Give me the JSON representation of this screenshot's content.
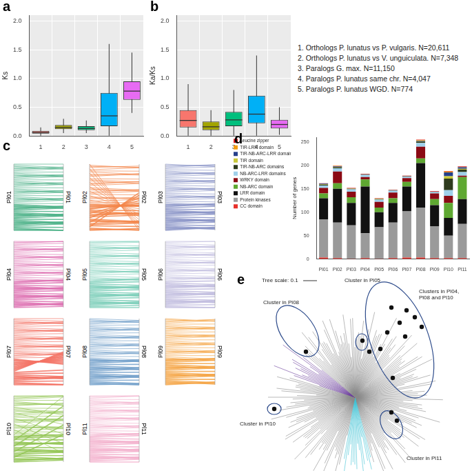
{
  "chart_data": [
    {
      "panel_label": "a",
      "type": "boxplot",
      "ylabel": "Ks",
      "categories": [
        "1",
        "2",
        "3",
        "4",
        "5"
      ],
      "colors": [
        "#f8766d",
        "#a3a500",
        "#00bf7d",
        "#00b0f6",
        "#e76bf3"
      ],
      "boxes": [
        {
          "whislo": 0.0,
          "q1": 0.04,
          "med": 0.06,
          "q3": 0.09,
          "whishi": 0.15
        },
        {
          "whislo": 0.05,
          "q1": 0.12,
          "med": 0.15,
          "q3": 0.19,
          "whishi": 0.3
        },
        {
          "whislo": 0.05,
          "q1": 0.1,
          "med": 0.13,
          "q3": 0.17,
          "whishi": 0.27
        },
        {
          "whislo": 0.0,
          "q1": 0.17,
          "med": 0.35,
          "q3": 0.75,
          "whishi": 1.6
        },
        {
          "whislo": 0.4,
          "q1": 0.63,
          "med": 0.78,
          "q3": 0.95,
          "whishi": 1.45
        }
      ],
      "ylim": [
        0,
        2.1
      ],
      "yticks": [
        {
          "value": 0,
          "label": "0.0"
        },
        {
          "value": 0.5,
          "label": "0.5"
        },
        {
          "value": 1,
          "label": "1.0"
        },
        {
          "value": 1.5,
          "label": "1.5"
        },
        {
          "value": 2,
          "label": "2.0"
        }
      ],
      "grid": true
    },
    {
      "panel_label": "b",
      "type": "boxplot",
      "ylabel": "Ka/Ks",
      "categories": [
        "1",
        "2",
        "3",
        "4",
        "5"
      ],
      "colors": [
        "#f8766d",
        "#a3a500",
        "#00bf7d",
        "#00b0f6",
        "#e76bf3"
      ],
      "boxes": [
        {
          "whislo": 0.0,
          "q1": 0.15,
          "med": 0.27,
          "q3": 0.45,
          "whishi": 0.9
        },
        {
          "whislo": 0.0,
          "q1": 0.1,
          "med": 0.16,
          "q3": 0.25,
          "whishi": 0.45
        },
        {
          "whislo": 0.0,
          "q1": 0.17,
          "med": 0.28,
          "q3": 0.42,
          "whishi": 0.8
        },
        {
          "whislo": 0.0,
          "q1": 0.22,
          "med": 0.38,
          "q3": 0.7,
          "whishi": 1.4
        },
        {
          "whislo": 0.02,
          "q1": 0.13,
          "med": 0.2,
          "q3": 0.28,
          "whishi": 0.5
        }
      ],
      "ylim": [
        0,
        2.1
      ],
      "yticks": [
        {
          "value": 0,
          "label": "0.0"
        },
        {
          "value": 0.5,
          "label": "0.5"
        },
        {
          "value": 1,
          "label": "1.0"
        },
        {
          "value": 1.5,
          "label": "1.5"
        },
        {
          "value": 2,
          "label": "2.0"
        }
      ],
      "grid": true
    },
    {
      "panel_label": "d",
      "type": "bar",
      "stacked": true,
      "legend": "left",
      "grid": false,
      "ylabel": "Number of genes",
      "categories": [
        "Pl01",
        "Pl02",
        "Pl03",
        "Pl04",
        "Pl05",
        "Pl06",
        "Pl07",
        "Pl08",
        "Pl09",
        "Pl10",
        "Pl11"
      ],
      "ylim": [
        0,
        260
      ],
      "yticks": [
        0,
        50,
        100,
        150,
        200,
        250
      ],
      "series": [
        {
          "name": "CC domain",
          "color": "#e8312b",
          "values": [
            3,
            2,
            1,
            2,
            1,
            2,
            3,
            3,
            2,
            2,
            2
          ]
        },
        {
          "name": "Protein kinases",
          "color": "#9a9a9a",
          "values": [
            82,
            76,
            71,
            53,
            67,
            76,
            99,
            107,
            68,
            48,
            73
          ]
        },
        {
          "name": "LRR domain",
          "color": "#111111",
          "values": [
            45,
            72,
            48,
            100,
            32,
            42,
            53,
            95,
            45,
            38,
            53
          ]
        },
        {
          "name": "NB-ARC domain",
          "color": "#5fa832",
          "values": [
            10,
            12,
            12,
            15,
            10,
            10,
            10,
            10,
            13,
            32,
            47
          ]
        },
        {
          "name": "WRKY domain",
          "color": "#8b0a14",
          "values": [
            12,
            25,
            12,
            5,
            12,
            12,
            8,
            25,
            12,
            15,
            3
          ]
        },
        {
          "name": "NB-ARC-LRR domains",
          "color": "#9fd0ea",
          "values": [
            5,
            7,
            5,
            5,
            5,
            4,
            3,
            8,
            3,
            12,
            8
          ]
        },
        {
          "name": "TIR-NB-ARC domains",
          "color": "#2e3b1e",
          "values": [
            2,
            2,
            1,
            1,
            1,
            1,
            1,
            3,
            1,
            25,
            5
          ]
        },
        {
          "name": "TIR domain",
          "color": "#c8c83a",
          "values": [
            1,
            1,
            1,
            0,
            1,
            0,
            0,
            1,
            0,
            5,
            2
          ]
        },
        {
          "name": "TIR-NB-ARC-LRR domains",
          "color": "#26408b",
          "values": [
            1,
            1,
            0,
            0,
            0,
            0,
            0,
            1,
            0,
            8,
            3
          ]
        },
        {
          "name": "TIR-LRR domain",
          "color": "#f39c12",
          "values": [
            0,
            1,
            0,
            0,
            0,
            0,
            0,
            1,
            0,
            2,
            1
          ]
        },
        {
          "name": "Leucine zipper",
          "color": "#d7191c",
          "values": [
            1,
            1,
            1,
            1,
            1,
            1,
            1,
            1,
            1,
            1,
            1
          ]
        }
      ]
    }
  ],
  "category_key": [
    "1. Orthologs P. lunatus vs P. vulgaris. N=20,611",
    "2. Orthologs P. lunatus vs V. unguiculata. N=7,348",
    "3. Paralogs G. max. N=11,150",
    "4. Paralogs P. lunatus same chr. N=4,047",
    "5. Paralogs P. lunatus WGD. N=774"
  ],
  "synteny": {
    "panel_label": "c",
    "chromosomes": [
      {
        "name": "Pl01",
        "color": "#4fb38a"
      },
      {
        "name": "Pl02",
        "color": "#f4874b"
      },
      {
        "name": "Pl03",
        "color": "#8c96c8"
      },
      {
        "name": "Pl04",
        "color": "#df74b4"
      },
      {
        "name": "Pl05",
        "color": "#7fd0bb"
      },
      {
        "name": "Pl06",
        "color": "#c3bfe0"
      },
      {
        "name": "Pl07",
        "color": "#f47466"
      },
      {
        "name": "Pl08",
        "color": "#78a4cd"
      },
      {
        "name": "Pl09",
        "color": "#f5a648"
      },
      {
        "name": "Pl10",
        "color": "#94c656"
      },
      {
        "name": "Pl11",
        "color": "#f4b4cf"
      }
    ]
  },
  "tree": {
    "panel_label": "e",
    "scale_label": "Tree scale: 0.1",
    "clusters": [
      "Cluster in Pl05",
      "Clusters in Pl04, Pl08 and Pl10",
      "Cluster in Pl08",
      "Cluster in Pl10",
      "Cluster in Pl11"
    ]
  }
}
